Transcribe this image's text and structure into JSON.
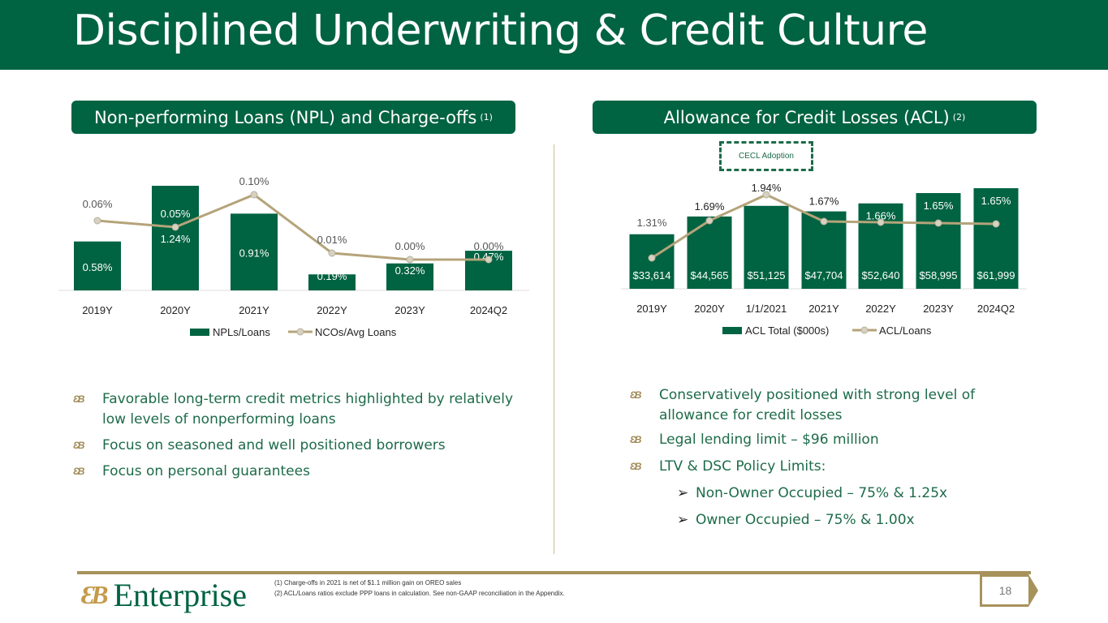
{
  "title": "Disciplined Underwriting & Credit Culture",
  "left_panel": {
    "heading": "Non-performing Loans (NPL) and Charge-offs",
    "heading_note": "(1)",
    "bullets": [
      "Favorable long-term credit metrics highlighted by relatively low levels of nonperforming loans",
      "Focus on seasoned and well positioned borrowers",
      "Focus on personal guarantees"
    ]
  },
  "right_panel": {
    "heading": "Allowance for Credit Losses (ACL)",
    "heading_note": "(2)",
    "annotation": "CECL Adoption",
    "bullets": [
      "Conservatively positioned with strong level of allowance for credit losses",
      "Legal lending limit – $96 million",
      "LTV & DSC Policy Limits:"
    ],
    "sub_bullets": [
      "Non-Owner Occupied – 75% & 1.25x",
      "Owner Occupied – 75% & 1.00x"
    ]
  },
  "colors": {
    "green": "#006341",
    "gold": "#b5a47a",
    "marker": "#d6d1c0"
  },
  "chart_data": [
    {
      "type": "bar+line",
      "categories": [
        "2019Y",
        "2020Y",
        "2021Y",
        "2022Y",
        "2023Y",
        "2024Q2"
      ],
      "series": [
        {
          "name": "NPLs/Loans",
          "type": "bar",
          "values": [
            0.58,
            1.24,
            0.91,
            0.19,
            0.32,
            0.47
          ],
          "labels": [
            "0.58%",
            "1.24%",
            "0.91%",
            "0.19%",
            "0.32%",
            "0.47%"
          ]
        },
        {
          "name": "NCOs/Avg Loans",
          "type": "line",
          "axis": "secondary",
          "values": [
            0.06,
            0.05,
            0.1,
            0.01,
            0.0,
            0.0
          ],
          "labels": [
            "0.06%",
            "0.05%",
            "0.10%",
            "0.01%",
            "0.00%",
            "0.00%"
          ]
        }
      ],
      "legend": "bottom",
      "grid": false
    },
    {
      "type": "bar+line",
      "categories": [
        "2019Y",
        "2020Y",
        "1/1/2021",
        "2021Y",
        "2022Y",
        "2023Y",
        "2024Q2"
      ],
      "series": [
        {
          "name": "ACL Total ($000s)",
          "type": "bar",
          "values": [
            33614,
            44565,
            51125,
            47704,
            52640,
            58995,
            61999
          ],
          "labels": [
            "$33,614",
            "$44,565",
            "$51,125",
            "$47,704",
            "$52,640",
            "$58,995",
            "$61,999"
          ]
        },
        {
          "name": "ACL/Loans",
          "type": "line",
          "axis": "secondary",
          "values": [
            1.31,
            1.69,
            1.94,
            1.67,
            1.66,
            1.65,
            1.65
          ],
          "labels": [
            "1.31%",
            "1.69%",
            "1.94%",
            "1.67%",
            "1.66%",
            "1.65%",
            "1.65%"
          ]
        }
      ],
      "legend": "bottom",
      "grid": false
    }
  ],
  "footer": {
    "logo": "Enterprise",
    "notes": [
      "(1)    Charge-offs in 2021 is net of $1.1 million gain on OREO sales",
      "(2)    ACL/Loans ratios exclude PPP loans in calculation. See non-GAAP reconciliation in the Appendix."
    ],
    "page": "18"
  }
}
